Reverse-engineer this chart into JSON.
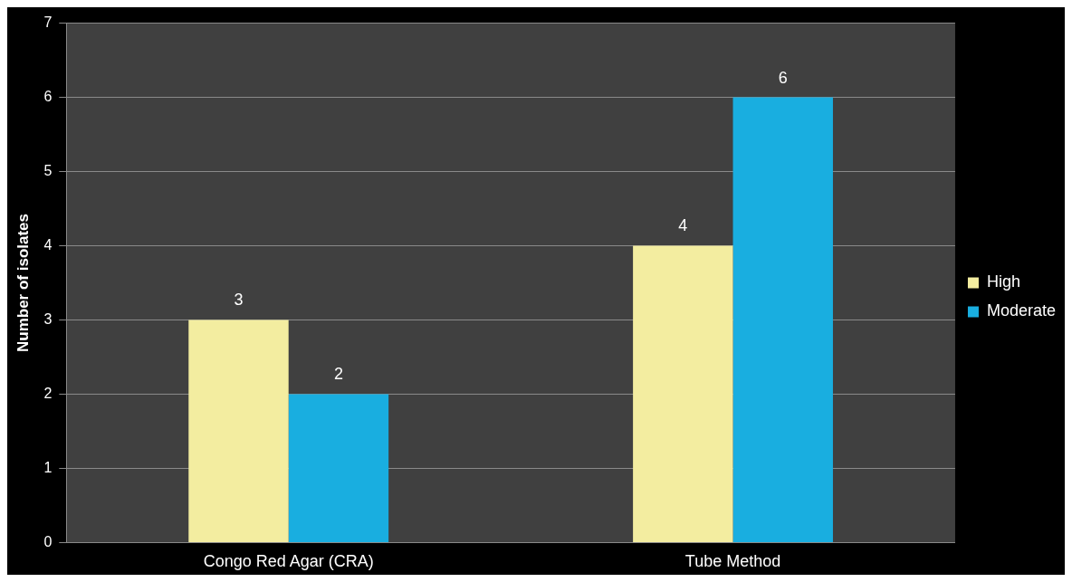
{
  "chart_data": {
    "type": "bar",
    "ylabel": "Number of isolates",
    "categories": [
      "Congo Red Agar (CRA)",
      "Tube Method"
    ],
    "series": [
      {
        "name": "High",
        "color": "#f3eda0",
        "values": [
          3,
          4
        ]
      },
      {
        "name": "Moderate",
        "color": "#19aee0",
        "values": [
          2,
          6
        ]
      }
    ],
    "ylim": [
      0,
      7
    ],
    "yticks": [
      0,
      1,
      2,
      3,
      4,
      5,
      6,
      7
    ],
    "grid": "y",
    "legend": "right",
    "data_labels": true
  }
}
